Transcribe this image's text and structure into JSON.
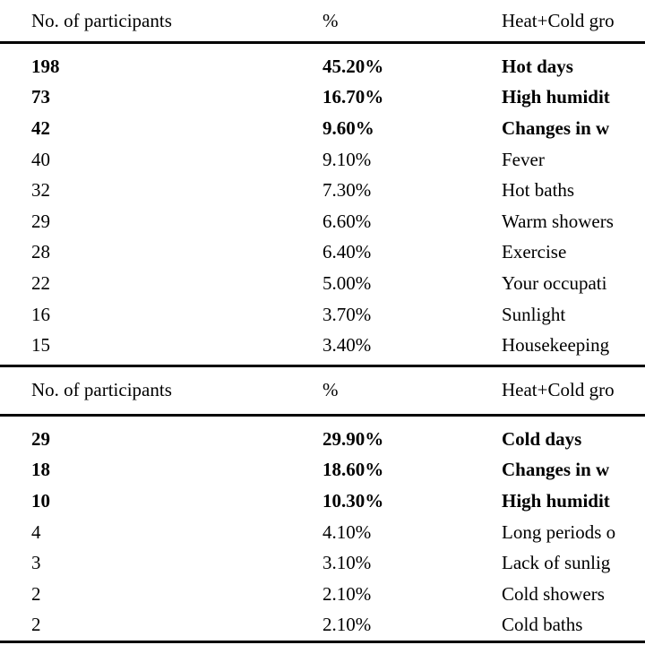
{
  "page": {
    "background": "#ffffff",
    "text_color": "#000000"
  },
  "tables": [
    {
      "headers": {
        "participants": "No. of participants",
        "percent": "%",
        "group": "Heat+Cold gro"
      },
      "rows": [
        {
          "n": "198",
          "pct": "45.20%",
          "item": "Hot days",
          "bold": true
        },
        {
          "n": "73",
          "pct": "16.70%",
          "item": "High humidit",
          "bold": true
        },
        {
          "n": "42",
          "pct": "9.60%",
          "item": "Changes in w",
          "bold": true
        },
        {
          "n": "40",
          "pct": "9.10%",
          "item": "Fever",
          "bold": false
        },
        {
          "n": "32",
          "pct": "7.30%",
          "item": "Hot baths",
          "bold": false
        },
        {
          "n": "29",
          "pct": "6.60%",
          "item": "Warm showers",
          "bold": false
        },
        {
          "n": "28",
          "pct": "6.40%",
          "item": "Exercise",
          "bold": false
        },
        {
          "n": "22",
          "pct": "5.00%",
          "item": "Your occupati",
          "bold": false
        },
        {
          "n": "16",
          "pct": "3.70%",
          "item": "Sunlight",
          "bold": false
        },
        {
          "n": "15",
          "pct": "3.40%",
          "item": "Housekeeping",
          "bold": false
        }
      ]
    },
    {
      "headers": {
        "participants": "No. of participants",
        "percent": "%",
        "group": "Heat+Cold gro"
      },
      "rows": [
        {
          "n": "29",
          "pct": "29.90%",
          "item": "Cold days",
          "bold": true
        },
        {
          "n": "18",
          "pct": "18.60%",
          "item": "Changes in w",
          "bold": true
        },
        {
          "n": "10",
          "pct": "10.30%",
          "item": "High humidit",
          "bold": true
        },
        {
          "n": "4",
          "pct": "4.10%",
          "item": "Long periods o",
          "bold": false
        },
        {
          "n": "3",
          "pct": "3.10%",
          "item": "Lack of sunlig",
          "bold": false
        },
        {
          "n": "2",
          "pct": "2.10%",
          "item": "Cold showers",
          "bold": false
        },
        {
          "n": "2",
          "pct": "2.10%",
          "item": "Cold baths",
          "bold": false
        }
      ]
    }
  ]
}
